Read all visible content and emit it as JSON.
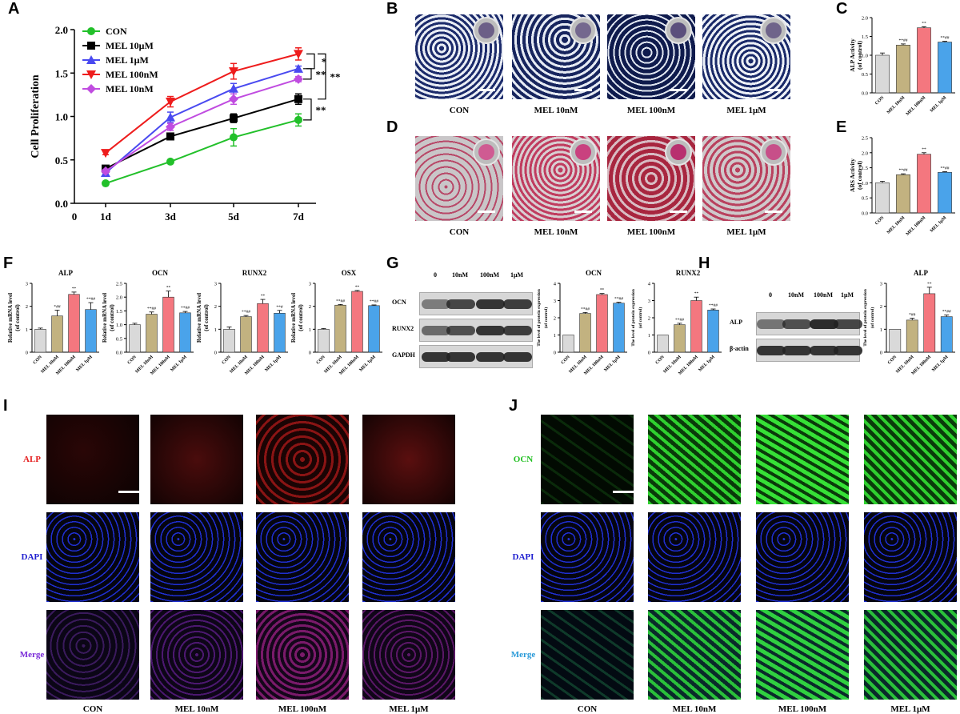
{
  "panels": {
    "A": "A",
    "B": "B",
    "C": "C",
    "D": "D",
    "E": "E",
    "F": "F",
    "G": "G",
    "H": "H",
    "I": "I",
    "J": "J"
  },
  "colors": {
    "CON": "#d9d9d9",
    "MEL 10nM": "#c2b280",
    "MEL 100nM": "#f4777f",
    "MEL 1μM": "#4aa3ea"
  },
  "chart_data": [
    {
      "panel": "A",
      "type": "line",
      "ylabel": "Cell Proliferation",
      "x": [
        "1d",
        "3d",
        "5d",
        "7d"
      ],
      "x_origin_label": "0",
      "ylim": [
        0,
        2.0
      ],
      "yticks": [
        "0.0",
        "0.5",
        "1.0",
        "1.5",
        "2.0"
      ],
      "legend_position": "top-left",
      "series": [
        {
          "name": "CON",
          "color": "#22c02a",
          "marker": "circle",
          "values": [
            0.23,
            0.48,
            0.76,
            0.96
          ],
          "err": [
            0,
            0,
            0.1,
            0.07
          ]
        },
        {
          "name": "MEL 10μM",
          "color": "#000000",
          "marker": "square",
          "values": [
            0.4,
            0.77,
            0.98,
            1.2
          ],
          "err": [
            0.03,
            0.03,
            0.05,
            0.06
          ]
        },
        {
          "name": "MEL 1μM",
          "color": "#4a4af0",
          "marker": "triangle-up",
          "values": [
            0.35,
            0.99,
            1.32,
            1.55
          ],
          "err": [
            0.02,
            0.06,
            0.06,
            0.03
          ]
        },
        {
          "name": "MEL 100nM",
          "color": "#ee1c1c",
          "marker": "triangle-down",
          "values": [
            0.58,
            1.17,
            1.52,
            1.72
          ],
          "err": [
            0.02,
            0.06,
            0.09,
            0.07
          ]
        },
        {
          "name": "MEL 10nM",
          "color": "#c04ce0",
          "marker": "diamond",
          "values": [
            0.37,
            0.88,
            1.2,
            1.43
          ],
          "err": [
            0.02,
            0.04,
            0.06,
            0.03
          ]
        }
      ],
      "annotations": [
        "*",
        "**",
        "**",
        "**"
      ]
    },
    {
      "panel": "C",
      "type": "bar",
      "ylabel": "ALP Activity\n(of control)",
      "categories": [
        "CON",
        "MEL 10nM",
        "MEL 100nM",
        "MEL 1μM"
      ],
      "values": [
        1.0,
        1.27,
        1.73,
        1.35
      ],
      "err": [
        0.06,
        0.03,
        0.03,
        0.02
      ],
      "ylim": [
        0,
        2.0
      ],
      "yticks": [
        "0.0",
        "0.5",
        "1.0",
        "1.5",
        "2.0"
      ],
      "labels": [
        "",
        "**##",
        "**",
        "**##"
      ]
    },
    {
      "panel": "E",
      "type": "bar",
      "ylabel": "ARS Activity\n(of control)",
      "categories": [
        "CON",
        "MEL 10nM",
        "MEL 100nM",
        "MEL 1μM"
      ],
      "values": [
        1.0,
        1.27,
        1.95,
        1.35
      ],
      "err": [
        0.05,
        0.03,
        0.05,
        0.02
      ],
      "ylim": [
        0,
        2.5
      ],
      "yticks": [
        "0.0",
        "0.5",
        "1.0",
        "1.5",
        "2.0",
        "2.5"
      ],
      "labels": [
        "",
        "**##",
        "**",
        "**##"
      ]
    },
    {
      "panel": "F",
      "type": "bar",
      "title": "ALP",
      "ylabel": "Relative mRNA level\n(of control)",
      "categories": [
        "CON",
        "MEL 10nM",
        "MEL 100nM",
        "MEL 1μM"
      ],
      "values": [
        1.0,
        1.58,
        2.52,
        1.86
      ],
      "err": [
        0.05,
        0.25,
        0.1,
        0.3
      ],
      "ylim": [
        0,
        3
      ],
      "yticks": [
        "0",
        "1",
        "2",
        "3"
      ],
      "labels": [
        "",
        "*##",
        "**",
        "**##"
      ]
    },
    {
      "panel": "F",
      "type": "bar",
      "title": "OCN",
      "ylabel": "Relative mRNA level\n(of control)",
      "categories": [
        "CON",
        "MEL 10nM",
        "MEL 100nM",
        "MEL 1μM"
      ],
      "values": [
        1.0,
        1.38,
        2.0,
        1.43
      ],
      "err": [
        0.05,
        0.08,
        0.22,
        0.05
      ],
      "ylim": [
        0,
        2.5
      ],
      "yticks": [
        "0.0",
        "0.5",
        "1.0",
        "1.5",
        "2.0",
        "2.5"
      ],
      "labels": [
        "",
        "**##",
        "**",
        "**##"
      ]
    },
    {
      "panel": "F",
      "type": "bar",
      "title": "RUNX2",
      "ylabel": "Relative mRNA level\n(of control)",
      "categories": [
        "CON",
        "MEL 10nM",
        "MEL 100nM",
        "MEL 1μM"
      ],
      "values": [
        1.0,
        1.55,
        2.12,
        1.7
      ],
      "err": [
        0.1,
        0.05,
        0.18,
        0.12
      ],
      "ylim": [
        0,
        3
      ],
      "yticks": [
        "0",
        "1",
        "2",
        "3"
      ],
      "labels": [
        "",
        "**##",
        "**",
        "**#"
      ]
    },
    {
      "panel": "F",
      "type": "bar",
      "title": "OSX",
      "ylabel": "Relative mRNA level\n(of control)",
      "categories": [
        "CON",
        "MEL 10nM",
        "MEL 100nM",
        "MEL 1μM"
      ],
      "values": [
        1.0,
        2.05,
        2.65,
        2.03
      ],
      "err": [
        0.03,
        0.03,
        0.04,
        0.03
      ],
      "ylim": [
        0,
        3
      ],
      "yticks": [
        "0",
        "1",
        "2",
        "3"
      ],
      "labels": [
        "",
        "**##",
        "**",
        "**##"
      ]
    },
    {
      "panel": "G",
      "type": "bar",
      "title": "OCN",
      "ylabel": "The level of protein expression\n(of control)",
      "categories": [
        "CON",
        "MEL 10nM",
        "MEL 100nM",
        "MEL 1μM"
      ],
      "values": [
        1.0,
        2.25,
        3.35,
        2.85
      ],
      "err": [
        0.0,
        0.06,
        0.06,
        0.05
      ],
      "ylim": [
        0,
        4
      ],
      "yticks": [
        "0",
        "1",
        "2",
        "3",
        "4"
      ],
      "labels": [
        "",
        "**##",
        "**",
        "**##"
      ]
    },
    {
      "panel": "G",
      "type": "bar",
      "title": "RUNX2",
      "ylabel": "The level of protein expression\n(of control)",
      "categories": [
        "CON",
        "MEL 10nM",
        "MEL 100nM",
        "MEL 1μM"
      ],
      "values": [
        1.0,
        1.6,
        3.0,
        2.45
      ],
      "err": [
        0.0,
        0.08,
        0.2,
        0.06
      ],
      "ylim": [
        0,
        4
      ],
      "yticks": [
        "0",
        "1",
        "2",
        "3",
        "4"
      ],
      "labels": [
        "",
        "**##",
        "**",
        "**##"
      ]
    },
    {
      "panel": "H",
      "type": "bar",
      "title": "ALP",
      "ylabel": "The level of protein expression\n(of control)",
      "categories": [
        "CON",
        "MEL 10nM",
        "MEL 100nM",
        "MEL 1μM"
      ],
      "values": [
        1.0,
        1.4,
        2.55,
        1.55
      ],
      "err": [
        0.0,
        0.08,
        0.28,
        0.07
      ],
      "ylim": [
        0,
        3
      ],
      "yticks": [
        "0",
        "1",
        "2",
        "3"
      ],
      "labels": [
        "",
        "*##",
        "**",
        "**##"
      ]
    }
  ],
  "B": {
    "captions": [
      "CON",
      "MEL 10nM",
      "MEL 100nM",
      "MEL 1μM"
    ]
  },
  "D": {
    "captions": [
      "CON",
      "MEL 10nM",
      "MEL 100nM",
      "MEL 1μM"
    ]
  },
  "G_blot": {
    "lanes": [
      "0",
      "10nM",
      "100nM",
      "1μM"
    ],
    "rows": [
      "OCN",
      "RUNX2",
      "GAPDH"
    ]
  },
  "H_blot": {
    "lanes": [
      "0",
      "10nM",
      "100nM",
      "1μM"
    ],
    "rows": [
      "ALP",
      "β-actin"
    ]
  },
  "I": {
    "rows": [
      "ALP",
      "DAPI",
      "Merge"
    ],
    "captions": [
      "CON",
      "MEL 10nM",
      "MEL 100nM",
      "MEL 1μM"
    ]
  },
  "J": {
    "rows": [
      "OCN",
      "DAPI",
      "Merge"
    ],
    "captions": [
      "CON",
      "MEL 10nM",
      "MEL 100nM",
      "MEL 1μM"
    ]
  }
}
